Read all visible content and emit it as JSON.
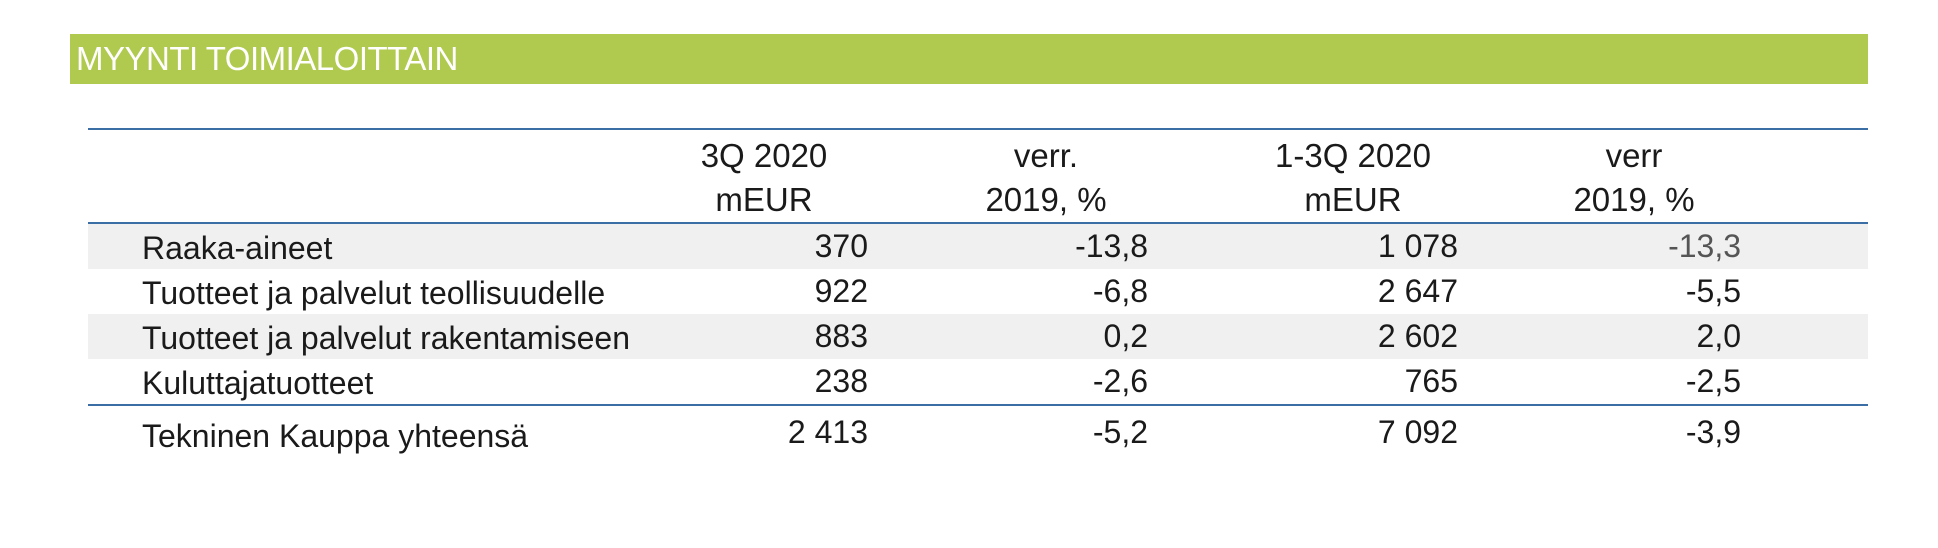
{
  "title": "MYYNTI TOIMIALOITTAIN",
  "columns": [
    {
      "line1": "3Q 2020",
      "line2": "mEUR"
    },
    {
      "line1": "verr.",
      "line2": "2019, %"
    },
    {
      "line1": "1-3Q 2020",
      "line2": "mEUR"
    },
    {
      "line1": "verr",
      "line2": "2019, %"
    }
  ],
  "rows": [
    {
      "label": "Raaka-aineet",
      "values": [
        "370",
        "-13,8",
        "1 078",
        "-13,3"
      ]
    },
    {
      "label": "Tuotteet ja palvelut teollisuudelle",
      "values": [
        "922",
        "-6,8",
        "2 647",
        "-5,5"
      ]
    },
    {
      "label": "Tuotteet ja palvelut rakentamiseen",
      "values": [
        "883",
        "0,2",
        "2 602",
        "2,0"
      ]
    },
    {
      "label": "Kuluttajatuotteet",
      "values": [
        "238",
        "-2,6",
        "765",
        "-2,5"
      ]
    }
  ],
  "total": {
    "label": "Tekninen Kauppa yhteensä",
    "values": [
      "2 413",
      "-5,2",
      "7 092",
      "-3,9"
    ]
  },
  "colors": {
    "title_bar": "#afca4e",
    "rule": "#3b6ea5",
    "row_shade": "#f0f0f0"
  }
}
